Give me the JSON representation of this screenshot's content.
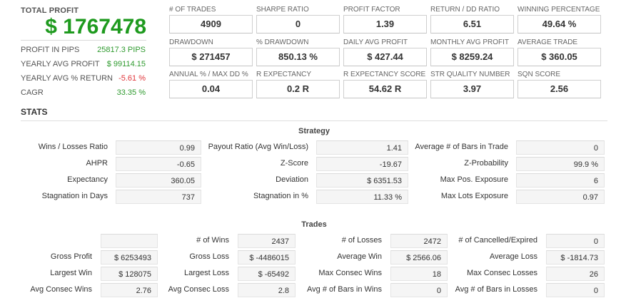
{
  "summary": {
    "total_profit_label": "TOTAL PROFIT",
    "total_profit_value": "$ 1767478",
    "rows": [
      {
        "label": "PROFIT IN PIPS",
        "value": "25817.3 PIPS",
        "color": "#2e9a2e"
      },
      {
        "label": "YEARLY AVG PROFIT",
        "value": "$ 99114.15",
        "color": "#2e9a2e"
      },
      {
        "label": "YEARLY AVG % RETURN",
        "value": "-5.61 %",
        "color": "#e0353a"
      },
      {
        "label": "CAGR",
        "value": "33.35 %",
        "color": "#2e9a2e"
      }
    ]
  },
  "kpis": [
    [
      {
        "label": "# OF TRADES",
        "value": "4909"
      },
      {
        "label": "SHARPE RATIO",
        "value": "0"
      },
      {
        "label": "PROFIT FACTOR",
        "value": "1.39"
      },
      {
        "label": "RETURN / DD RATIO",
        "value": "6.51"
      },
      {
        "label": "WINNING PERCENTAGE",
        "value": "49.64 %"
      }
    ],
    [
      {
        "label": "DRAWDOWN",
        "value": "$ 271457"
      },
      {
        "label": "% DRAWDOWN",
        "value": "850.13 %"
      },
      {
        "label": "DAILY AVG PROFIT",
        "value": "$ 427.44"
      },
      {
        "label": "MONTHLY AVG PROFIT",
        "value": "$ 8259.24"
      },
      {
        "label": "AVERAGE TRADE",
        "value": "$ 360.05"
      }
    ],
    [
      {
        "label": "ANNUAL % / MAX DD %",
        "value": "0.04"
      },
      {
        "label": "R EXPECTANCY",
        "value": "0.2 R"
      },
      {
        "label": "R EXPECTANCY SCORE",
        "value": "54.62 R"
      },
      {
        "label": "STR QUALITY NUMBER",
        "value": "3.97"
      },
      {
        "label": "SQN SCORE",
        "value": "2.56"
      }
    ]
  ],
  "stats": {
    "title": "STATS",
    "strategy": {
      "title": "Strategy",
      "rows": [
        [
          {
            "label": "Wins / Losses Ratio",
            "value": "0.99"
          },
          {
            "label": "Payout Ratio (Avg Win/Loss)",
            "value": "1.41"
          },
          {
            "label": "Average # of Bars in Trade",
            "value": "0"
          }
        ],
        [
          {
            "label": "AHPR",
            "value": "-0.65"
          },
          {
            "label": "Z-Score",
            "value": "-19.67"
          },
          {
            "label": "Z-Probability",
            "value": "99.9 %"
          }
        ],
        [
          {
            "label": "Expectancy",
            "value": "360.05"
          },
          {
            "label": "Deviation",
            "value": "$ 6351.53"
          },
          {
            "label": "Max Pos. Exposure",
            "value": "6"
          }
        ],
        [
          {
            "label": "Stagnation in Days",
            "value": "737"
          },
          {
            "label": "Stagnation in %",
            "value": "11.33 %"
          },
          {
            "label": "Max Lots Exposure",
            "value": "0.97"
          }
        ]
      ]
    },
    "trades": {
      "title": "Trades",
      "rows": [
        [
          {
            "label": "",
            "value": ""
          },
          {
            "label": "# of Wins",
            "value": "2437"
          },
          {
            "label": "# of Losses",
            "value": "2472"
          },
          {
            "label": "# of Cancelled/Expired",
            "value": "0"
          }
        ],
        [
          {
            "label": "Gross Profit",
            "value": "$ 6253493"
          },
          {
            "label": "Gross Loss",
            "value": "$ -4486015"
          },
          {
            "label": "Average Win",
            "value": "$ 2566.06"
          },
          {
            "label": "Average Loss",
            "value": "$ -1814.73"
          }
        ],
        [
          {
            "label": "Largest Win",
            "value": "$ 128075"
          },
          {
            "label": "Largest Loss",
            "value": "$ -65492"
          },
          {
            "label": "Max Consec Wins",
            "value": "18"
          },
          {
            "label": "Max Consec Losses",
            "value": "26"
          }
        ],
        [
          {
            "label": "Avg Consec Wins",
            "value": "2.76"
          },
          {
            "label": "Avg Consec Loss",
            "value": "2.8"
          },
          {
            "label": "Avg # of Bars in Wins",
            "value": "0"
          },
          {
            "label": "Avg # of Bars in Losses",
            "value": "0"
          }
        ]
      ]
    }
  }
}
